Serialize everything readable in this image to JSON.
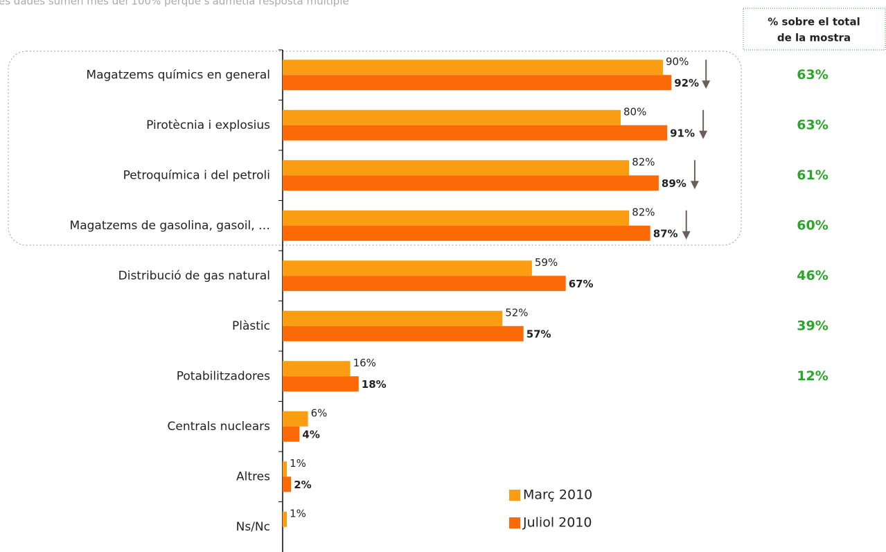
{
  "chart_data": {
    "type": "bar",
    "orientation": "horizontal",
    "note": "es dades sumen més del 100% perquè s'admetia resposta múltiple",
    "categories": [
      "Magatzems químics en general",
      "Pirotècnia i explosius",
      "Petroquímica i del petroli",
      "Magatzems de gasolina, gasoil, …",
      "Distribució de gas natural",
      "Plàstic",
      "Potabilitzadores",
      "Centrals nuclears",
      "Altres",
      "Ns/Nc"
    ],
    "series": [
      {
        "name": "Març 2010",
        "color": "#fa9d12",
        "values": [
          90,
          80,
          82,
          82,
          59,
          52,
          16,
          6,
          1,
          1
        ],
        "value_labels": [
          "90%",
          "80%",
          "82%",
          "82%",
          "59%",
          "52%",
          "16%",
          "6%",
          "1%",
          "1%"
        ]
      },
      {
        "name": "Juliol 2010",
        "color": "#fb6a07",
        "values": [
          92,
          91,
          89,
          87,
          67,
          57,
          18,
          4,
          2,
          null
        ],
        "value_labels": [
          "92%",
          "91%",
          "89%",
          "87%",
          "67%",
          "57%",
          "18%",
          "4%",
          "2%",
          null
        ]
      }
    ],
    "xlim": [
      0,
      100
    ],
    "totals": {
      "title_lines": [
        "% sobre el total",
        "de la mostra"
      ],
      "values": [
        63,
        63,
        61,
        60,
        46,
        39,
        12
      ],
      "value_labels": [
        "63%",
        "63%",
        "61%",
        "60%",
        "46%",
        "39%",
        "12%"
      ]
    }
  }
}
